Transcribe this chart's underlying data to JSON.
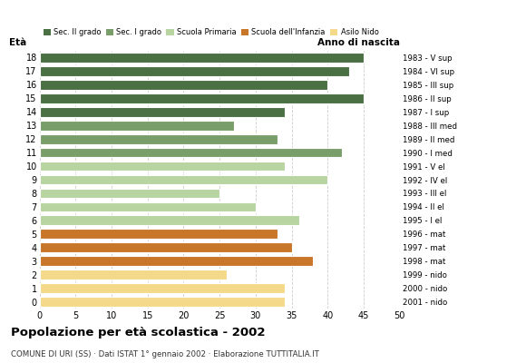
{
  "ages": [
    18,
    17,
    16,
    15,
    14,
    13,
    12,
    11,
    10,
    9,
    8,
    7,
    6,
    5,
    4,
    3,
    2,
    1,
    0
  ],
  "values": [
    45,
    43,
    40,
    45,
    34,
    27,
    33,
    42,
    34,
    40,
    25,
    30,
    36,
    33,
    35,
    38,
    26,
    34,
    34
  ],
  "right_labels": [
    "1983 - V sup",
    "1984 - VI sup",
    "1985 - III sup",
    "1986 - II sup",
    "1987 - I sup",
    "1988 - III med",
    "1989 - II med",
    "1990 - I med",
    "1991 - V el",
    "1992 - IV el",
    "1993 - III el",
    "1994 - II el",
    "1995 - I el",
    "1996 - mat",
    "1997 - mat",
    "1998 - mat",
    "1999 - nido",
    "2000 - nido",
    "2001 - nido"
  ],
  "categories": {
    "Sec. II grado": {
      "ages": [
        18,
        17,
        16,
        15,
        14
      ],
      "color": "#4a7043"
    },
    "Sec. I grado": {
      "ages": [
        13,
        12,
        11
      ],
      "color": "#7a9e6a"
    },
    "Scuola Primaria": {
      "ages": [
        10,
        9,
        8,
        7,
        6
      ],
      "color": "#b8d4a0"
    },
    "Scuola dell'Infanzia": {
      "ages": [
        5,
        4,
        3
      ],
      "color": "#c8762a"
    },
    "Asilo Nido": {
      "ages": [
        2,
        1,
        0
      ],
      "color": "#f5d98b"
    }
  },
  "title": "Popolazione per età scolastica - 2002",
  "subtitle": "COMUNE DI URI (SS) · Dati ISTAT 1° gennaio 2002 · Elaborazione TUTTITALIA.IT",
  "xlabel_eta": "Età",
  "xlabel_anno": "Anno di nascita",
  "xlim": [
    0,
    50
  ],
  "xticks": [
    0,
    5,
    10,
    15,
    20,
    25,
    30,
    35,
    40,
    45,
    50
  ],
  "background_color": "#ffffff",
  "grid_color": "#cccccc"
}
